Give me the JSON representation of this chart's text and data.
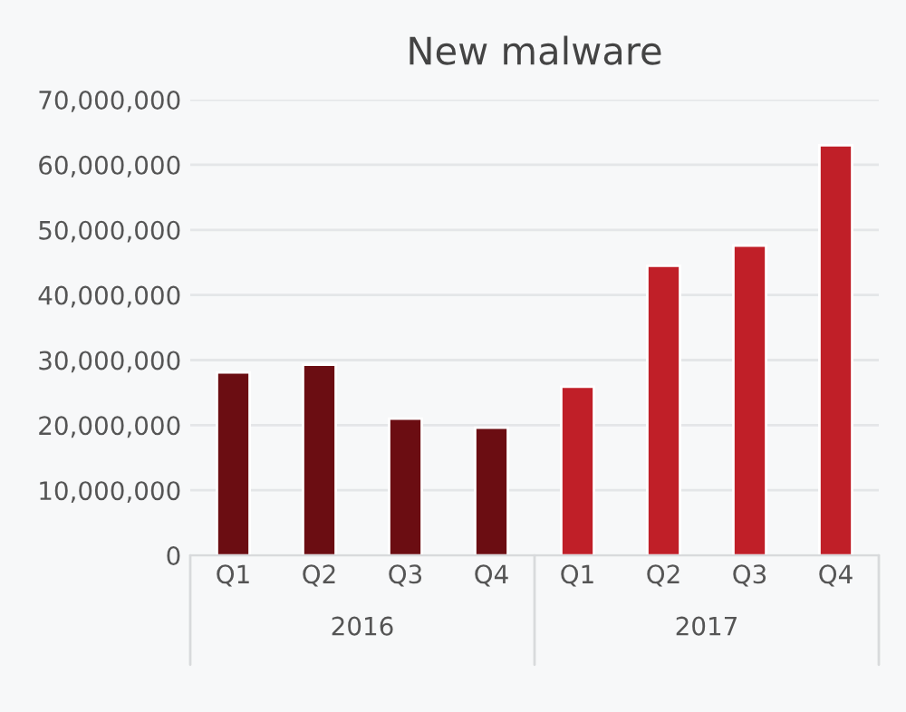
{
  "chart_data": {
    "type": "bar",
    "title": "New malware",
    "categories": [
      "Q1",
      "Q2",
      "Q3",
      "Q4",
      "Q1",
      "Q2",
      "Q3",
      "Q4"
    ],
    "values": [
      28100000,
      29300000,
      21000000,
      19600000,
      25900000,
      44500000,
      47600000,
      63000000
    ],
    "colors": [
      "#6b0d12",
      "#6b0d12",
      "#6b0d12",
      "#6b0d12",
      "#c01f28",
      "#c01f28",
      "#c01f28",
      "#c01f28"
    ],
    "annotations": [
      "2016",
      "2017"
    ],
    "ylim": [
      0,
      70000000
    ],
    "yticks": [
      {
        "value": 0,
        "label": "0"
      },
      {
        "value": 10000000,
        "label": "10,000,000"
      },
      {
        "value": 20000000,
        "label": "20,000,000"
      },
      {
        "value": 30000000,
        "label": "30,000,000"
      },
      {
        "value": 40000000,
        "label": "40,000,000"
      },
      {
        "value": 50000000,
        "label": "50,000,000"
      },
      {
        "value": 60000000,
        "label": "60,000,000"
      },
      {
        "value": 70000000,
        "label": "70,000,000"
      }
    ],
    "grid": "y",
    "legend": false
  }
}
